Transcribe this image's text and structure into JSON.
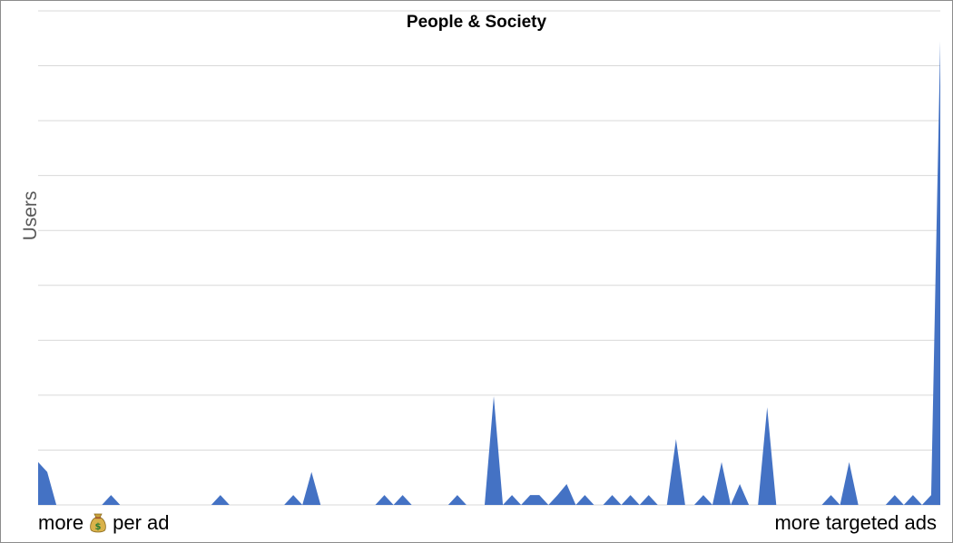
{
  "chart_data": {
    "type": "area",
    "title": "People & Society",
    "ylabel": "Users",
    "xlabel_left": "more",
    "xlabel_left_icon": "money-bag-icon",
    "xlabel_left_suffix": "per ad",
    "xlabel_right": "more targeted ads",
    "grid": true,
    "ylim": [
      0,
      9
    ],
    "series_color": "#4472c4",
    "grid_color": "#d9d9d9",
    "values": [
      0.78,
      0.6,
      0,
      0,
      0,
      0,
      0,
      0,
      0.18,
      0,
      0,
      0,
      0,
      0,
      0,
      0,
      0,
      0,
      0,
      0,
      0.18,
      0,
      0,
      0,
      0,
      0,
      0,
      0,
      0.18,
      0,
      0.6,
      0,
      0,
      0,
      0,
      0,
      0,
      0,
      0.18,
      0,
      0.18,
      0,
      0,
      0,
      0,
      0,
      0.18,
      0,
      0,
      0,
      1.98,
      0,
      0.18,
      0,
      0.18,
      0.18,
      0,
      0.18,
      0.38,
      0,
      0.18,
      0,
      0,
      0.18,
      0,
      0.18,
      0,
      0.18,
      0,
      0,
      1.2,
      0,
      0,
      0.18,
      0,
      0.78,
      0,
      0.38,
      0,
      0,
      1.78,
      0,
      0,
      0,
      0,
      0,
      0,
      0.18,
      0,
      0.78,
      0,
      0,
      0,
      0,
      0.18,
      0,
      0.18,
      0,
      0.18,
      8.45
    ]
  }
}
